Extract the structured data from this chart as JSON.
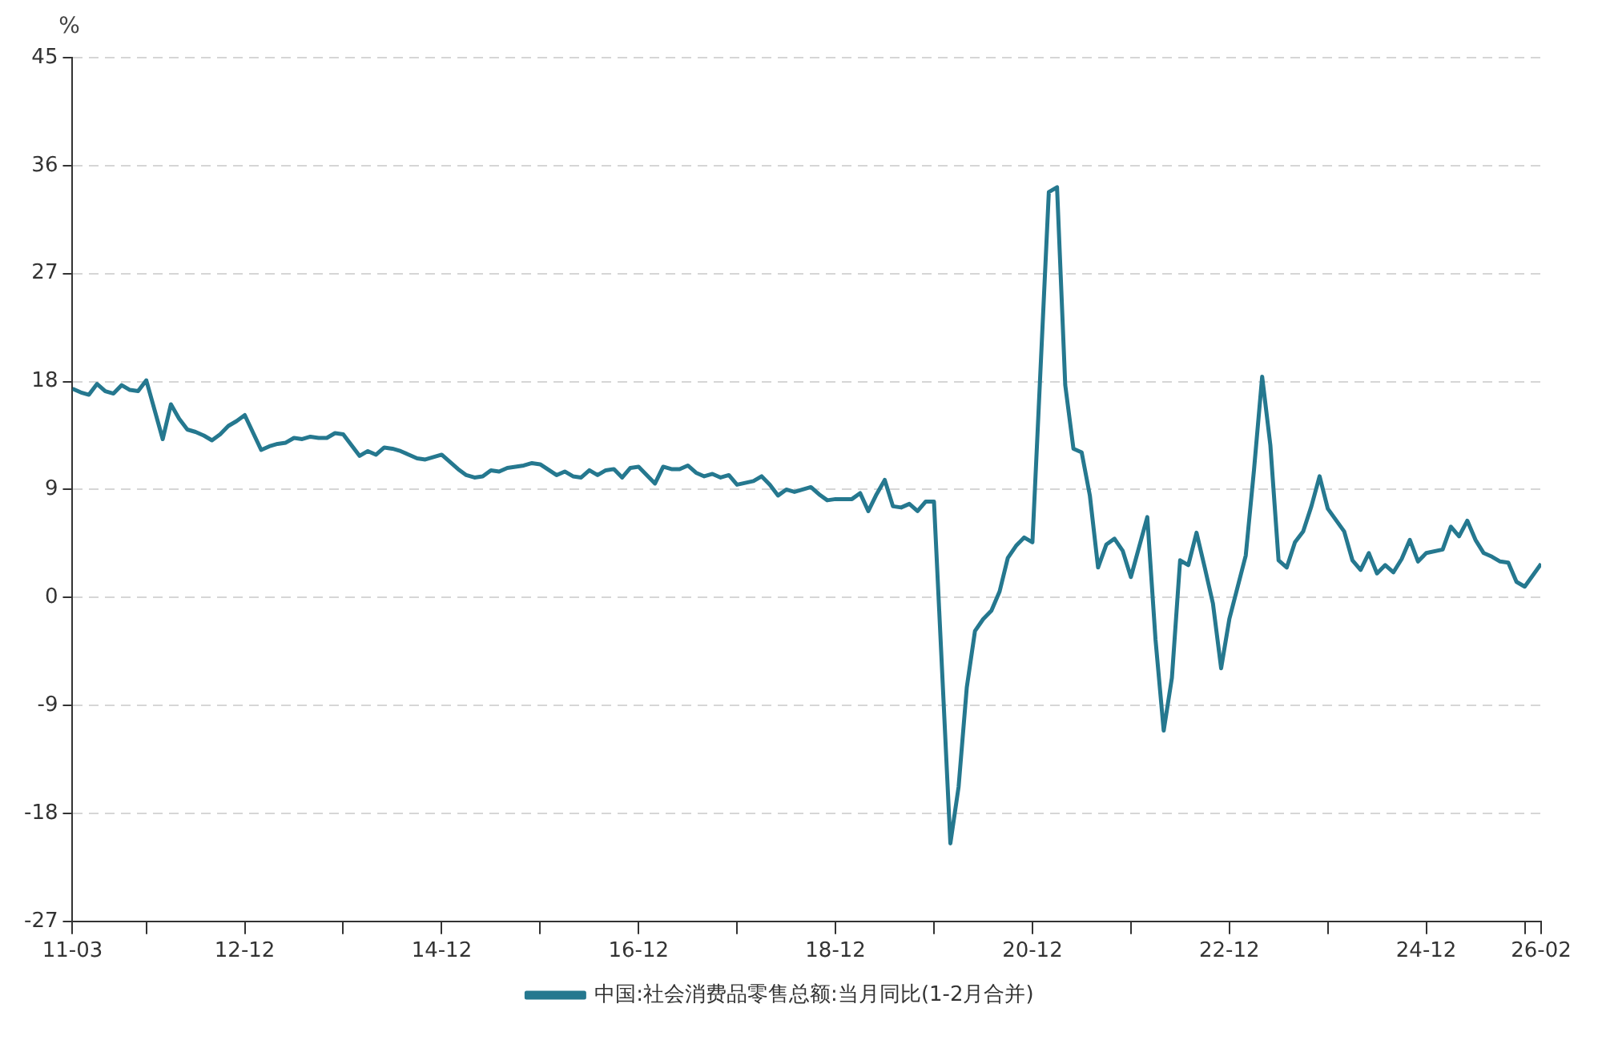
{
  "chart_data": {
    "type": "line",
    "ylabel": "%",
    "x": [
      "2011-03",
      "2011-04",
      "2011-05",
      "2011-06",
      "2011-07",
      "2011-08",
      "2011-09",
      "2011-10",
      "2011-11",
      "2011-12",
      "2012-02",
      "2012-03",
      "2012-04",
      "2012-05",
      "2012-06",
      "2012-07",
      "2012-08",
      "2012-09",
      "2012-10",
      "2012-11",
      "2012-12",
      "2013-02",
      "2013-03",
      "2013-04",
      "2013-05",
      "2013-06",
      "2013-07",
      "2013-08",
      "2013-09",
      "2013-10",
      "2013-11",
      "2013-12",
      "2014-02",
      "2014-03",
      "2014-04",
      "2014-05",
      "2014-06",
      "2014-07",
      "2014-08",
      "2014-09",
      "2014-10",
      "2014-11",
      "2014-12",
      "2015-02",
      "2015-03",
      "2015-04",
      "2015-05",
      "2015-06",
      "2015-07",
      "2015-08",
      "2015-09",
      "2015-10",
      "2015-11",
      "2015-12",
      "2016-02",
      "2016-03",
      "2016-04",
      "2016-05",
      "2016-06",
      "2016-07",
      "2016-08",
      "2016-09",
      "2016-10",
      "2016-11",
      "2016-12",
      "2017-02",
      "2017-03",
      "2017-04",
      "2017-05",
      "2017-06",
      "2017-07",
      "2017-08",
      "2017-09",
      "2017-10",
      "2017-11",
      "2017-12",
      "2018-02",
      "2018-03",
      "2018-04",
      "2018-05",
      "2018-06",
      "2018-07",
      "2018-08",
      "2018-09",
      "2018-10",
      "2018-11",
      "2018-12",
      "2019-02",
      "2019-03",
      "2019-04",
      "2019-05",
      "2019-06",
      "2019-07",
      "2019-08",
      "2019-09",
      "2019-10",
      "2019-11",
      "2019-12",
      "2020-02",
      "2020-03",
      "2020-04",
      "2020-05",
      "2020-06",
      "2020-07",
      "2020-08",
      "2020-09",
      "2020-10",
      "2020-11",
      "2020-12",
      "2021-02",
      "2021-03",
      "2021-04",
      "2021-05",
      "2021-06",
      "2021-07",
      "2021-08",
      "2021-09",
      "2021-10",
      "2021-11",
      "2021-12",
      "2022-02",
      "2022-03",
      "2022-04",
      "2022-05",
      "2022-06",
      "2022-07",
      "2022-08",
      "2022-09",
      "2022-10",
      "2022-11",
      "2022-12",
      "2023-02",
      "2023-03",
      "2023-04",
      "2023-05",
      "2023-06",
      "2023-07",
      "2023-08",
      "2023-09",
      "2023-10",
      "2023-11",
      "2023-12",
      "2024-02",
      "2024-03",
      "2024-04",
      "2024-05",
      "2024-06",
      "2024-07",
      "2024-08",
      "2024-09",
      "2024-10",
      "2024-11",
      "2024-12",
      "2025-02",
      "2025-03",
      "2025-04",
      "2025-05",
      "2025-06",
      "2025-07",
      "2025-08",
      "2025-09",
      "2025-10",
      "2025-11",
      "2025-12",
      "2026-02"
    ],
    "series": [
      {
        "name": "中国:社会消费品零售总额:当月同比(1-2月合并)",
        "color": "#25788f",
        "values": [
          17.4,
          17.1,
          16.9,
          17.8,
          17.2,
          17.0,
          17.7,
          17.3,
          17.2,
          18.1,
          13.2,
          16.1,
          14.9,
          14.0,
          13.8,
          13.5,
          13.1,
          13.6,
          14.3,
          14.7,
          15.2,
          12.3,
          12.6,
          12.8,
          12.9,
          13.3,
          13.2,
          13.4,
          13.3,
          13.3,
          13.7,
          13.6,
          11.8,
          12.2,
          11.9,
          12.5,
          12.4,
          12.2,
          11.9,
          11.6,
          11.5,
          11.7,
          11.9,
          10.7,
          10.2,
          10.0,
          10.1,
          10.6,
          10.5,
          10.8,
          10.9,
          11.0,
          11.2,
          11.1,
          10.2,
          10.5,
          10.1,
          10.0,
          10.6,
          10.2,
          10.6,
          10.7,
          10.0,
          10.8,
          10.9,
          9.5,
          10.9,
          10.7,
          10.7,
          11.0,
          10.4,
          10.1,
          10.3,
          10.0,
          10.2,
          9.4,
          9.7,
          10.1,
          9.4,
          8.5,
          9.0,
          8.8,
          9.0,
          9.2,
          8.6,
          8.1,
          8.2,
          8.2,
          8.7,
          7.2,
          8.6,
          9.8,
          7.6,
          7.5,
          7.8,
          7.2,
          8.0,
          8.0,
          -20.5,
          -15.8,
          -7.5,
          -2.8,
          -1.8,
          -1.1,
          0.5,
          3.3,
          4.3,
          5.0,
          4.6,
          33.8,
          34.2,
          17.7,
          12.4,
          12.1,
          8.5,
          2.5,
          4.4,
          4.9,
          3.9,
          1.7,
          6.7,
          -3.5,
          -11.1,
          -6.7,
          3.1,
          2.7,
          5.4,
          2.5,
          -0.5,
          -5.9,
          -1.8,
          3.5,
          10.6,
          18.4,
          12.7,
          3.1,
          2.5,
          4.6,
          5.5,
          7.6,
          10.1,
          7.4,
          5.5,
          3.1,
          2.3,
          3.7,
          2.0,
          2.7,
          2.1,
          3.2,
          4.8,
          3.0,
          3.7,
          4.0,
          5.9,
          5.1,
          6.4,
          4.8,
          3.7,
          3.4,
          3.0,
          2.9,
          1.3,
          0.9,
          2.8
        ]
      }
    ],
    "xlim": [
      "2011-03",
      "2026-02"
    ],
    "xticks": [
      {
        "value": "2011-03",
        "label": "11-03"
      },
      {
        "value": "2011-12",
        "label": null
      },
      {
        "value": "2012-12",
        "label": "12-12"
      },
      {
        "value": "2013-12",
        "label": null
      },
      {
        "value": "2014-12",
        "label": "14-12"
      },
      {
        "value": "2015-12",
        "label": null
      },
      {
        "value": "2016-12",
        "label": "16-12"
      },
      {
        "value": "2017-12",
        "label": null
      },
      {
        "value": "2018-12",
        "label": "18-12"
      },
      {
        "value": "2019-12",
        "label": null
      },
      {
        "value": "2020-12",
        "label": "20-12"
      },
      {
        "value": "2021-12",
        "label": null
      },
      {
        "value": "2022-12",
        "label": "22-12"
      },
      {
        "value": "2023-12",
        "label": null
      },
      {
        "value": "2024-12",
        "label": "24-12"
      },
      {
        "value": "2025-12",
        "label": null
      },
      {
        "value": "2026-02",
        "label": "26-02"
      }
    ],
    "ylim": [
      -27,
      45
    ],
    "yticks": [
      -27,
      -18,
      -9,
      0,
      9,
      18,
      27,
      36,
      45
    ],
    "grid": "y",
    "legend": "bottom",
    "marker": "none",
    "line_style": "solid"
  }
}
